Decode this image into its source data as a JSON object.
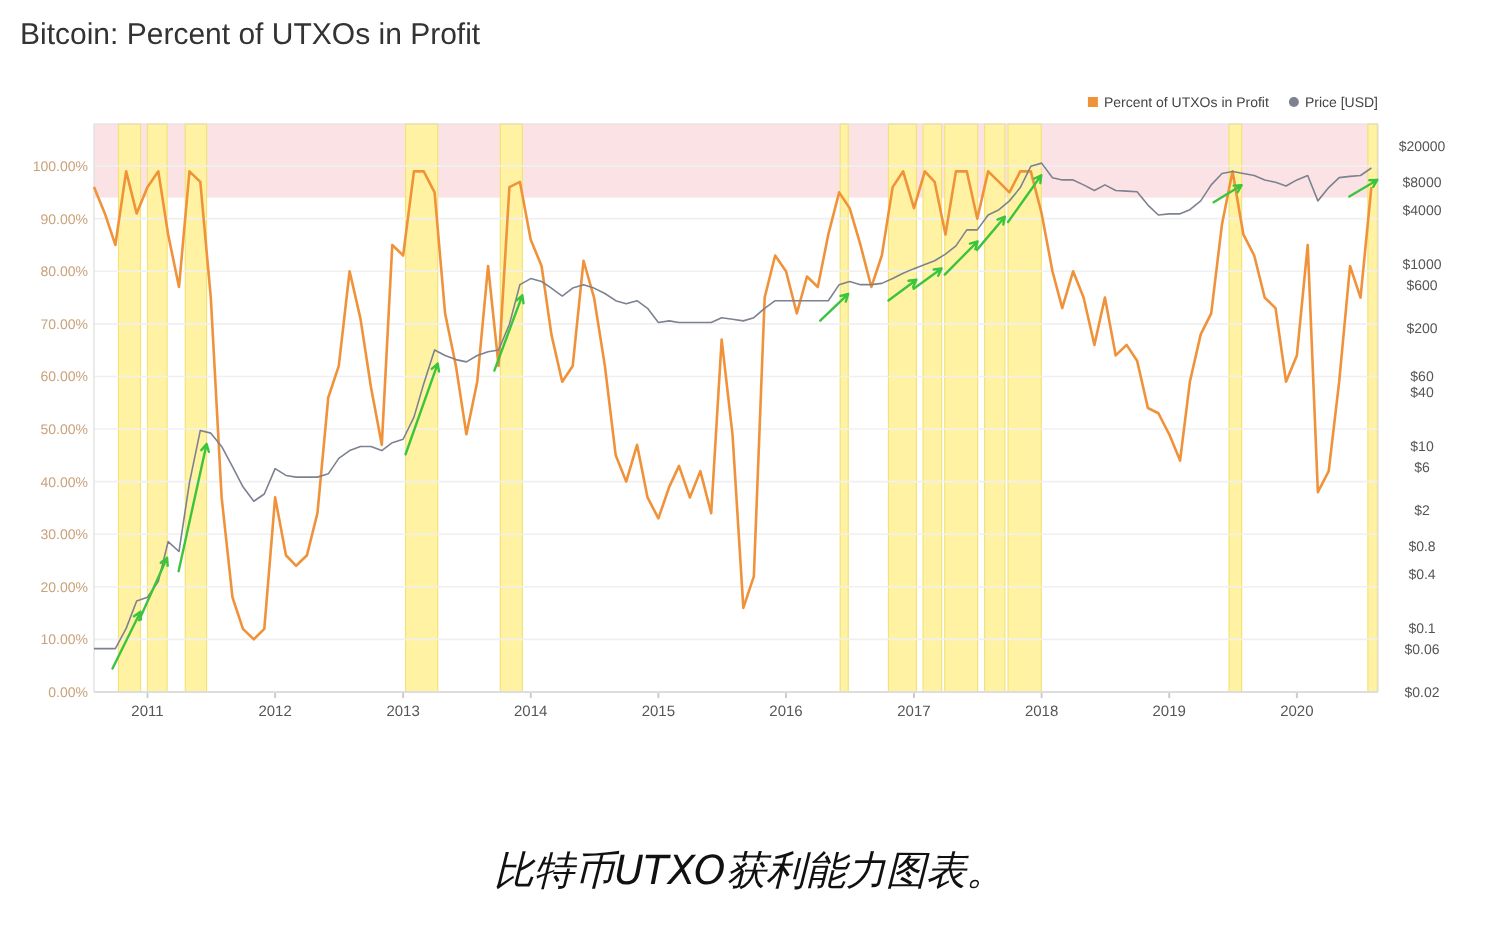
{
  "chart_data": {
    "type": "line",
    "title": "Bitcoin: Percent of UTXOs in Profit",
    "x": [
      "2010-08",
      "2010-09",
      "2010-10",
      "2010-11",
      "2010-12",
      "2011-01",
      "2011-02",
      "2011-03",
      "2011-04",
      "2011-05",
      "2011-06",
      "2011-07",
      "2011-08",
      "2011-09",
      "2011-10",
      "2011-11",
      "2011-12",
      "2012-01",
      "2012-02",
      "2012-03",
      "2012-04",
      "2012-05",
      "2012-06",
      "2012-07",
      "2012-08",
      "2012-09",
      "2012-10",
      "2012-11",
      "2012-12",
      "2013-01",
      "2013-02",
      "2013-03",
      "2013-04",
      "2013-05",
      "2013-06",
      "2013-07",
      "2013-08",
      "2013-09",
      "2013-10",
      "2013-11",
      "2013-12",
      "2014-01",
      "2014-02",
      "2014-03",
      "2014-04",
      "2014-05",
      "2014-06",
      "2014-07",
      "2014-08",
      "2014-09",
      "2014-10",
      "2014-11",
      "2014-12",
      "2015-01",
      "2015-02",
      "2015-03",
      "2015-04",
      "2015-05",
      "2015-06",
      "2015-07",
      "2015-08",
      "2015-09",
      "2015-10",
      "2015-11",
      "2015-12",
      "2016-01",
      "2016-02",
      "2016-03",
      "2016-04",
      "2016-05",
      "2016-06",
      "2016-07",
      "2016-08",
      "2016-09",
      "2016-10",
      "2016-11",
      "2016-12",
      "2017-01",
      "2017-02",
      "2017-03",
      "2017-04",
      "2017-05",
      "2017-06",
      "2017-07",
      "2017-08",
      "2017-09",
      "2017-10",
      "2017-11",
      "2017-12",
      "2018-01",
      "2018-02",
      "2018-03",
      "2018-04",
      "2018-05",
      "2018-06",
      "2018-07",
      "2018-08",
      "2018-09",
      "2018-10",
      "2018-11",
      "2018-12",
      "2019-01",
      "2019-02",
      "2019-03",
      "2019-04",
      "2019-05",
      "2019-06",
      "2019-07",
      "2019-08",
      "2019-09",
      "2019-10",
      "2019-11",
      "2019-12",
      "2020-01",
      "2020-02",
      "2020-03",
      "2020-04",
      "2020-05",
      "2020-06",
      "2020-07",
      "2020-08"
    ],
    "series": [
      {
        "name": "Percent of UTXOs in Profit",
        "color": "#f0923a",
        "values": [
          96,
          91,
          85,
          99,
          91,
          96,
          99,
          87,
          77,
          99,
          97,
          75,
          37,
          18,
          12,
          10,
          12,
          37,
          26,
          24,
          26,
          34,
          56,
          62,
          80,
          71,
          58,
          47,
          85,
          83,
          99,
          99,
          95,
          72,
          62,
          49,
          59,
          81,
          62,
          96,
          97,
          86,
          81,
          68,
          59,
          62,
          82,
          75,
          62,
          45,
          40,
          47,
          37,
          33,
          39,
          43,
          37,
          42,
          34,
          67,
          49,
          16,
          22,
          75,
          83,
          80,
          72,
          79,
          77,
          87,
          95,
          92,
          85,
          77,
          83,
          96,
          99,
          92,
          99,
          97,
          87,
          99,
          99,
          90,
          99,
          97,
          95,
          99,
          99,
          91,
          80,
          73,
          80,
          75,
          66,
          75,
          64,
          66,
          63,
          54,
          53,
          49,
          44,
          59,
          68,
          72,
          89,
          99,
          87,
          83,
          75,
          73,
          59,
          64,
          85,
          38,
          42,
          59,
          81,
          75,
          96
        ]
      },
      {
        "name": "Price [USD]",
        "color": "#7d8290",
        "axis": "y2",
        "values": [
          0.06,
          0.06,
          0.06,
          0.1,
          0.2,
          0.22,
          0.33,
          0.9,
          0.7,
          4,
          15,
          14,
          10,
          6,
          3.6,
          2.5,
          3,
          5.7,
          4.8,
          4.6,
          4.6,
          4.6,
          5,
          7.4,
          9,
          10,
          10,
          9,
          11,
          12,
          21,
          49,
          115,
          100,
          90,
          85,
          100,
          110,
          115,
          220,
          600,
          700,
          650,
          550,
          450,
          550,
          600,
          550,
          480,
          400,
          370,
          400,
          330,
          230,
          240,
          230,
          230,
          230,
          230,
          260,
          250,
          240,
          260,
          330,
          400,
          400,
          400,
          400,
          400,
          400,
          600,
          650,
          600,
          600,
          620,
          700,
          800,
          900,
          1000,
          1100,
          1300,
          1600,
          2400,
          2400,
          3500,
          4000,
          5000,
          7000,
          12000,
          13000,
          9000,
          8500,
          8500,
          7500,
          6500,
          7500,
          6500,
          6400,
          6300,
          4500,
          3500,
          3600,
          3600,
          4000,
          5000,
          7500,
          10000,
          10500,
          10000,
          9500,
          8500,
          8000,
          7300,
          8500,
          9500,
          5000,
          7000,
          9000,
          9300,
          9500,
          11500
        ]
      }
    ],
    "xlim": [
      "2010-08",
      "2020-08-20"
    ],
    "xticks": [
      "2011",
      "2012",
      "2013",
      "2014",
      "2015",
      "2016",
      "2017",
      "2018",
      "2019",
      "2020"
    ],
    "ylim": [
      0,
      108
    ],
    "yticks": [
      {
        "value": 0,
        "label": "0.00%"
      },
      {
        "value": 10,
        "label": "10.00%"
      },
      {
        "value": 20,
        "label": "20.00%"
      },
      {
        "value": 30,
        "label": "30.00%"
      },
      {
        "value": 40,
        "label": "40.00%"
      },
      {
        "value": 50,
        "label": "50.00%"
      },
      {
        "value": 60,
        "label": "60.00%"
      },
      {
        "value": 70,
        "label": "70.00%"
      },
      {
        "value": 80,
        "label": "80.00%"
      },
      {
        "value": 90,
        "label": "90.00%"
      },
      {
        "value": 100,
        "label": "100.00%"
      }
    ],
    "y2lim": [
      0.02,
      35000
    ],
    "y2ticks": [
      {
        "value": 0.02,
        "label": "$0.02"
      },
      {
        "value": 0.06,
        "label": "$0.06"
      },
      {
        "value": 0.1,
        "label": "$0.1"
      },
      {
        "value": 0.4,
        "label": "$0.4"
      },
      {
        "value": 0.8,
        "label": "$0.8"
      },
      {
        "value": 2,
        "label": "$2"
      },
      {
        "value": 6,
        "label": "$6"
      },
      {
        "value": 10,
        "label": "$10"
      },
      {
        "value": 40,
        "label": "$40"
      },
      {
        "value": 60,
        "label": "$60"
      },
      {
        "value": 200,
        "label": "$200"
      },
      {
        "value": 600,
        "label": "$600"
      },
      {
        "value": 1000,
        "label": "$1000"
      },
      {
        "value": 4000,
        "label": "$4000"
      },
      {
        "value": 8000,
        "label": "$8000"
      },
      {
        "value": 20000,
        "label": "$20000"
      }
    ],
    "log": "y2",
    "grid": "y",
    "legend": "top right",
    "bands": [
      {
        "axis": "y",
        "from": 94,
        "to": 108,
        "color": "#fbe3e5"
      },
      {
        "axis": "x",
        "from": "2010-10-10",
        "to": "2010-12-12",
        "color": "#fff3a3"
      },
      {
        "axis": "x",
        "from": "2011-01-01",
        "to": "2011-02-26",
        "color": "#fff3a3"
      },
      {
        "axis": "x",
        "from": "2011-04-19",
        "to": "2011-06-19",
        "color": "#fff3a3"
      },
      {
        "axis": "x",
        "from": "2013-01-08",
        "to": "2013-04-10",
        "color": "#fff3a3"
      },
      {
        "axis": "x",
        "from": "2013-10-06",
        "to": "2013-12-08",
        "color": "#fff3a3"
      },
      {
        "axis": "x",
        "from": "2016-06-04",
        "to": "2016-06-27",
        "color": "#fff3a3"
      },
      {
        "axis": "x",
        "from": "2016-10-20",
        "to": "2017-01-08",
        "color": "#fff3a3"
      },
      {
        "axis": "x",
        "from": "2017-01-27",
        "to": "2017-03-21",
        "color": "#fff3a3"
      },
      {
        "axis": "x",
        "from": "2017-03-30",
        "to": "2017-07-02",
        "color": "#fff3a3"
      },
      {
        "axis": "x",
        "from": "2017-07-22",
        "to": "2017-09-18",
        "color": "#fff3a3"
      },
      {
        "axis": "x",
        "from": "2017-09-27",
        "to": "2017-12-31",
        "color": "#fff3a3"
      },
      {
        "axis": "x",
        "from": "2019-06-21",
        "to": "2019-07-27",
        "color": "#fff3a3"
      },
      {
        "axis": "x",
        "from": "2020-07-22",
        "to": "2020-08-18",
        "color": "#fff3a3"
      }
    ],
    "annotations": [
      "比特币UTXO获利能力图表。"
    ]
  }
}
